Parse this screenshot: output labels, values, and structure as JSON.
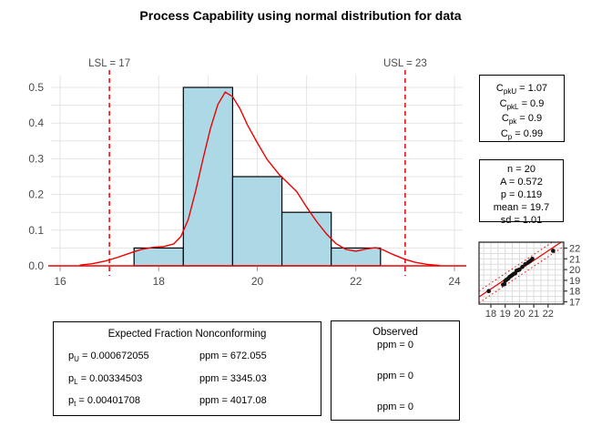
{
  "title": "Process Capability using normal distribution for data",
  "chart_data": [
    {
      "type": "bar",
      "subtype": "histogram-with-density",
      "title": "Process Capability using normal distribution for data",
      "xlabel": "",
      "ylabel": "",
      "xlim": [
        16,
        24
      ],
      "ylim": [
        0,
        0.5
      ],
      "grid": "on",
      "x_tick_labels": [
        "16",
        "18",
        "20",
        "22",
        "24"
      ],
      "x_tick_values": [
        16,
        18,
        20,
        22,
        24
      ],
      "y_tick_labels": [
        "0.0",
        "0.1",
        "0.2",
        "0.3",
        "0.4",
        "0.5"
      ],
      "y_tick_values": [
        0,
        0.1,
        0.2,
        0.3,
        0.4,
        0.5
      ],
      "bins": {
        "breaks": [
          17.5,
          18.5,
          19.5,
          20.5,
          21.5,
          22.5
        ],
        "densities": [
          0.05,
          0.5,
          0.25,
          0.15,
          0.05
        ]
      },
      "spec_limits": {
        "lsl": {
          "label": "LSL = 17",
          "value": 17
        },
        "usl": {
          "label": "USL = 23",
          "value": 23
        }
      },
      "density_curve": [
        [
          16.4,
          0.002
        ],
        [
          16.65,
          0.006
        ],
        [
          16.9,
          0.013
        ],
        [
          17.15,
          0.023
        ],
        [
          17.4,
          0.035
        ],
        [
          17.65,
          0.046
        ],
        [
          17.9,
          0.052
        ],
        [
          18.1,
          0.054
        ],
        [
          18.3,
          0.061
        ],
        [
          18.45,
          0.082
        ],
        [
          18.6,
          0.13
        ],
        [
          18.75,
          0.21
        ],
        [
          18.9,
          0.3
        ],
        [
          19.05,
          0.385
        ],
        [
          19.2,
          0.452
        ],
        [
          19.35,
          0.487
        ],
        [
          19.5,
          0.474
        ],
        [
          19.65,
          0.44
        ],
        [
          19.8,
          0.395
        ],
        [
          20.0,
          0.345
        ],
        [
          20.2,
          0.298
        ],
        [
          20.45,
          0.255
        ],
        [
          20.6,
          0.235
        ],
        [
          20.8,
          0.208
        ],
        [
          21.0,
          0.165
        ],
        [
          21.2,
          0.125
        ],
        [
          21.4,
          0.09
        ],
        [
          21.6,
          0.062
        ],
        [
          21.8,
          0.046
        ],
        [
          22.0,
          0.041
        ],
        [
          22.2,
          0.047
        ],
        [
          22.4,
          0.051
        ],
        [
          22.55,
          0.045
        ],
        [
          22.75,
          0.032
        ],
        [
          23.0,
          0.018
        ],
        [
          23.2,
          0.01
        ],
        [
          23.45,
          0.004
        ],
        [
          23.7,
          0.001
        ]
      ],
      "colors": {
        "bar_fill": "#ADD8E6",
        "bar_border": "#000000",
        "curve": "#EE0000",
        "spec_line": "#EE0000",
        "zero_line": "#EE0000",
        "grid": "#E4E4E4",
        "tick_label": "#4A4A4E",
        "tick_mark": "#999999"
      }
    },
    {
      "type": "scatter",
      "subtype": "normal-qq-plot",
      "xlim": [
        17.17,
        23.1
      ],
      "ylim": [
        16.8,
        22.55
      ],
      "grid": "on",
      "x_tick_labels": [
        "18",
        "19",
        "20",
        "21",
        "22"
      ],
      "x_tick_values": [
        18,
        19,
        20,
        21,
        22
      ],
      "y_tick_labels": [
        "17",
        "18",
        "19",
        "20",
        "21",
        "22"
      ],
      "y_tick_values": [
        17,
        18,
        19,
        20,
        21,
        22
      ],
      "fit_line": {
        "slope": 0.887,
        "through_x": 19.7,
        "through_y": 19.7
      },
      "band_offset": 0.55,
      "points": [
        [
          17.85,
          18.0
        ],
        [
          18.85,
          18.6
        ],
        [
          18.95,
          18.65
        ],
        [
          19.0,
          18.95
        ],
        [
          19.1,
          19.05
        ],
        [
          19.2,
          19.15
        ],
        [
          19.3,
          19.3
        ],
        [
          19.4,
          19.4
        ],
        [
          19.5,
          19.5
        ],
        [
          19.6,
          19.6
        ],
        [
          19.7,
          19.65
        ],
        [
          19.8,
          19.9
        ],
        [
          19.9,
          19.95
        ],
        [
          20.0,
          20.0
        ],
        [
          20.2,
          20.25
        ],
        [
          20.4,
          20.5
        ],
        [
          20.6,
          20.65
        ],
        [
          20.75,
          20.8
        ],
        [
          20.9,
          21.0
        ],
        [
          22.35,
          21.75
        ]
      ],
      "colors": {
        "point": "#111111",
        "line": "#EE0000",
        "band": "#EE0000",
        "grid": "#DCDCDC",
        "box_border": "#333333",
        "tick_label": "#3C3C40"
      }
    }
  ],
  "capability_box": {
    "lines": [
      {
        "base": "C",
        "sub": "pkU",
        "rest": " = 1.07"
      },
      {
        "base": "C",
        "sub": "pkL",
        "rest": " = 0.9"
      },
      {
        "base": "C",
        "sub": "pk",
        "rest": " = 0.9"
      },
      {
        "base": "C",
        "sub": "p",
        "rest": " = 0.99"
      }
    ]
  },
  "summary_box": {
    "lines": [
      "n = 20",
      "A = 0.572",
      "p = 0.119",
      "mean = 19.7",
      "sd = 1.01"
    ]
  },
  "expected_box": {
    "title": "Expected Fraction Nonconforming",
    "rows": [
      {
        "base": "p",
        "sub": "U",
        "rest": " = 0.000672055",
        "ppm": "ppm = 672.055"
      },
      {
        "base": "p",
        "sub": "L",
        "rest": " = 0.00334503",
        "ppm": "ppm = 3345.03"
      },
      {
        "base": "p",
        "sub": "t",
        "rest": " = 0.00401708",
        "ppm": "ppm = 4017.08"
      }
    ]
  },
  "observed_box": {
    "title": "Observed",
    "rows": [
      "ppm = 0",
      "ppm = 0",
      "ppm = 0"
    ]
  }
}
